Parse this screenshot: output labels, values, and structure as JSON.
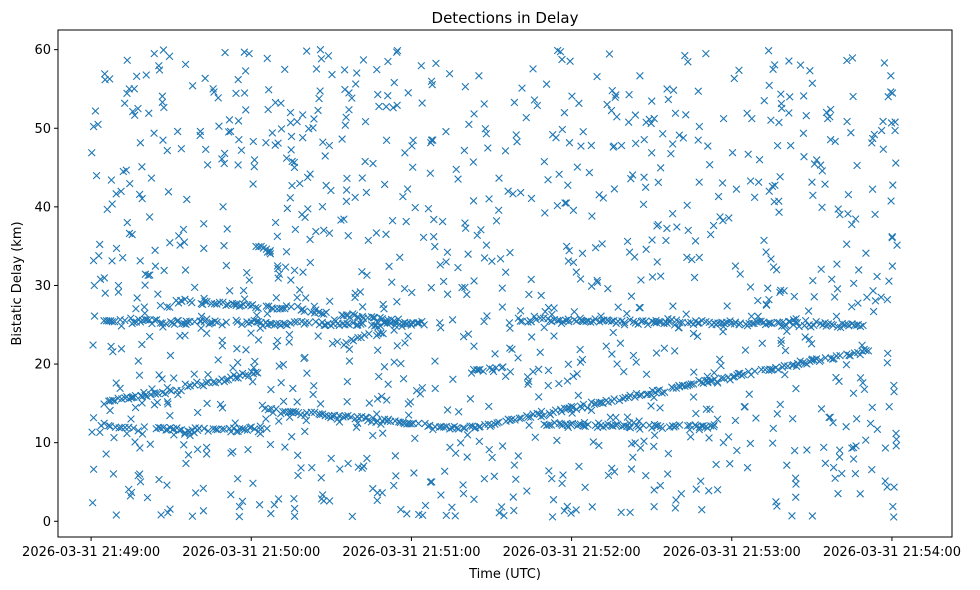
{
  "chart_data": {
    "type": "scatter",
    "title": "Detections in Delay",
    "xlabel": "Time (UTC)",
    "ylabel": "Bistatic Delay (km)",
    "x_unit": "seconds after 2026-03-31 21:49:00",
    "xlim_s": [
      -12.4,
      322.5
    ],
    "ylim": [
      -2.0,
      62.5
    ],
    "x_ticks": [
      {
        "s": 0,
        "label": "2026-03-31 21:49:00"
      },
      {
        "s": 60,
        "label": "2026-03-31 21:50:00"
      },
      {
        "s": 120,
        "label": "2026-03-31 21:51:00"
      },
      {
        "s": 180,
        "label": "2026-03-31 21:52:00"
      },
      {
        "s": 240,
        "label": "2026-03-31 21:53:00"
      },
      {
        "s": 300,
        "label": "2026-03-31 21:54:00"
      }
    ],
    "y_ticks": [
      0,
      10,
      20,
      30,
      40,
      50,
      60
    ],
    "grid": false,
    "legend": "none",
    "series": [
      {
        "marker": "x",
        "color": "#1f77b4",
        "description_tracks": "linear tracks of detections plus uniform clutter",
        "tracks": [
          {
            "x0": 4,
            "y0": 15.0,
            "x1": 64,
            "y1": 19.0
          },
          {
            "x0": 64,
            "y0": 14.3,
            "x1": 140,
            "y1": 11.7
          },
          {
            "x0": 140,
            "y0": 11.7,
            "x1": 292,
            "y1": 21.8
          },
          {
            "x0": 4,
            "y0": 25.5,
            "x1": 125,
            "y1": 25.0
          },
          {
            "x0": 30,
            "y0": 28.0,
            "x1": 64,
            "y1": 27.4
          },
          {
            "x0": 64,
            "y0": 27.4,
            "x1": 115,
            "y1": 25.5
          },
          {
            "x0": 160,
            "y0": 25.6,
            "x1": 290,
            "y1": 25.0
          },
          {
            "x0": 4,
            "y0": 12.0,
            "x1": 64,
            "y1": 11.5
          },
          {
            "x0": 170,
            "y0": 12.3,
            "x1": 235,
            "y1": 12.0
          },
          {
            "x0": 95,
            "y0": 23.0,
            "x1": 110,
            "y1": 24.0
          },
          {
            "x0": 62,
            "y0": 35.0,
            "x1": 68,
            "y1": 34.5
          },
          {
            "x0": 140,
            "y0": 19.0,
            "x1": 155,
            "y1": 19.5
          }
        ],
        "clutter_count": 1100,
        "clutter_xrange": [
          0,
          302
        ],
        "clutter_yrange": [
          0.5,
          60
        ]
      }
    ]
  }
}
